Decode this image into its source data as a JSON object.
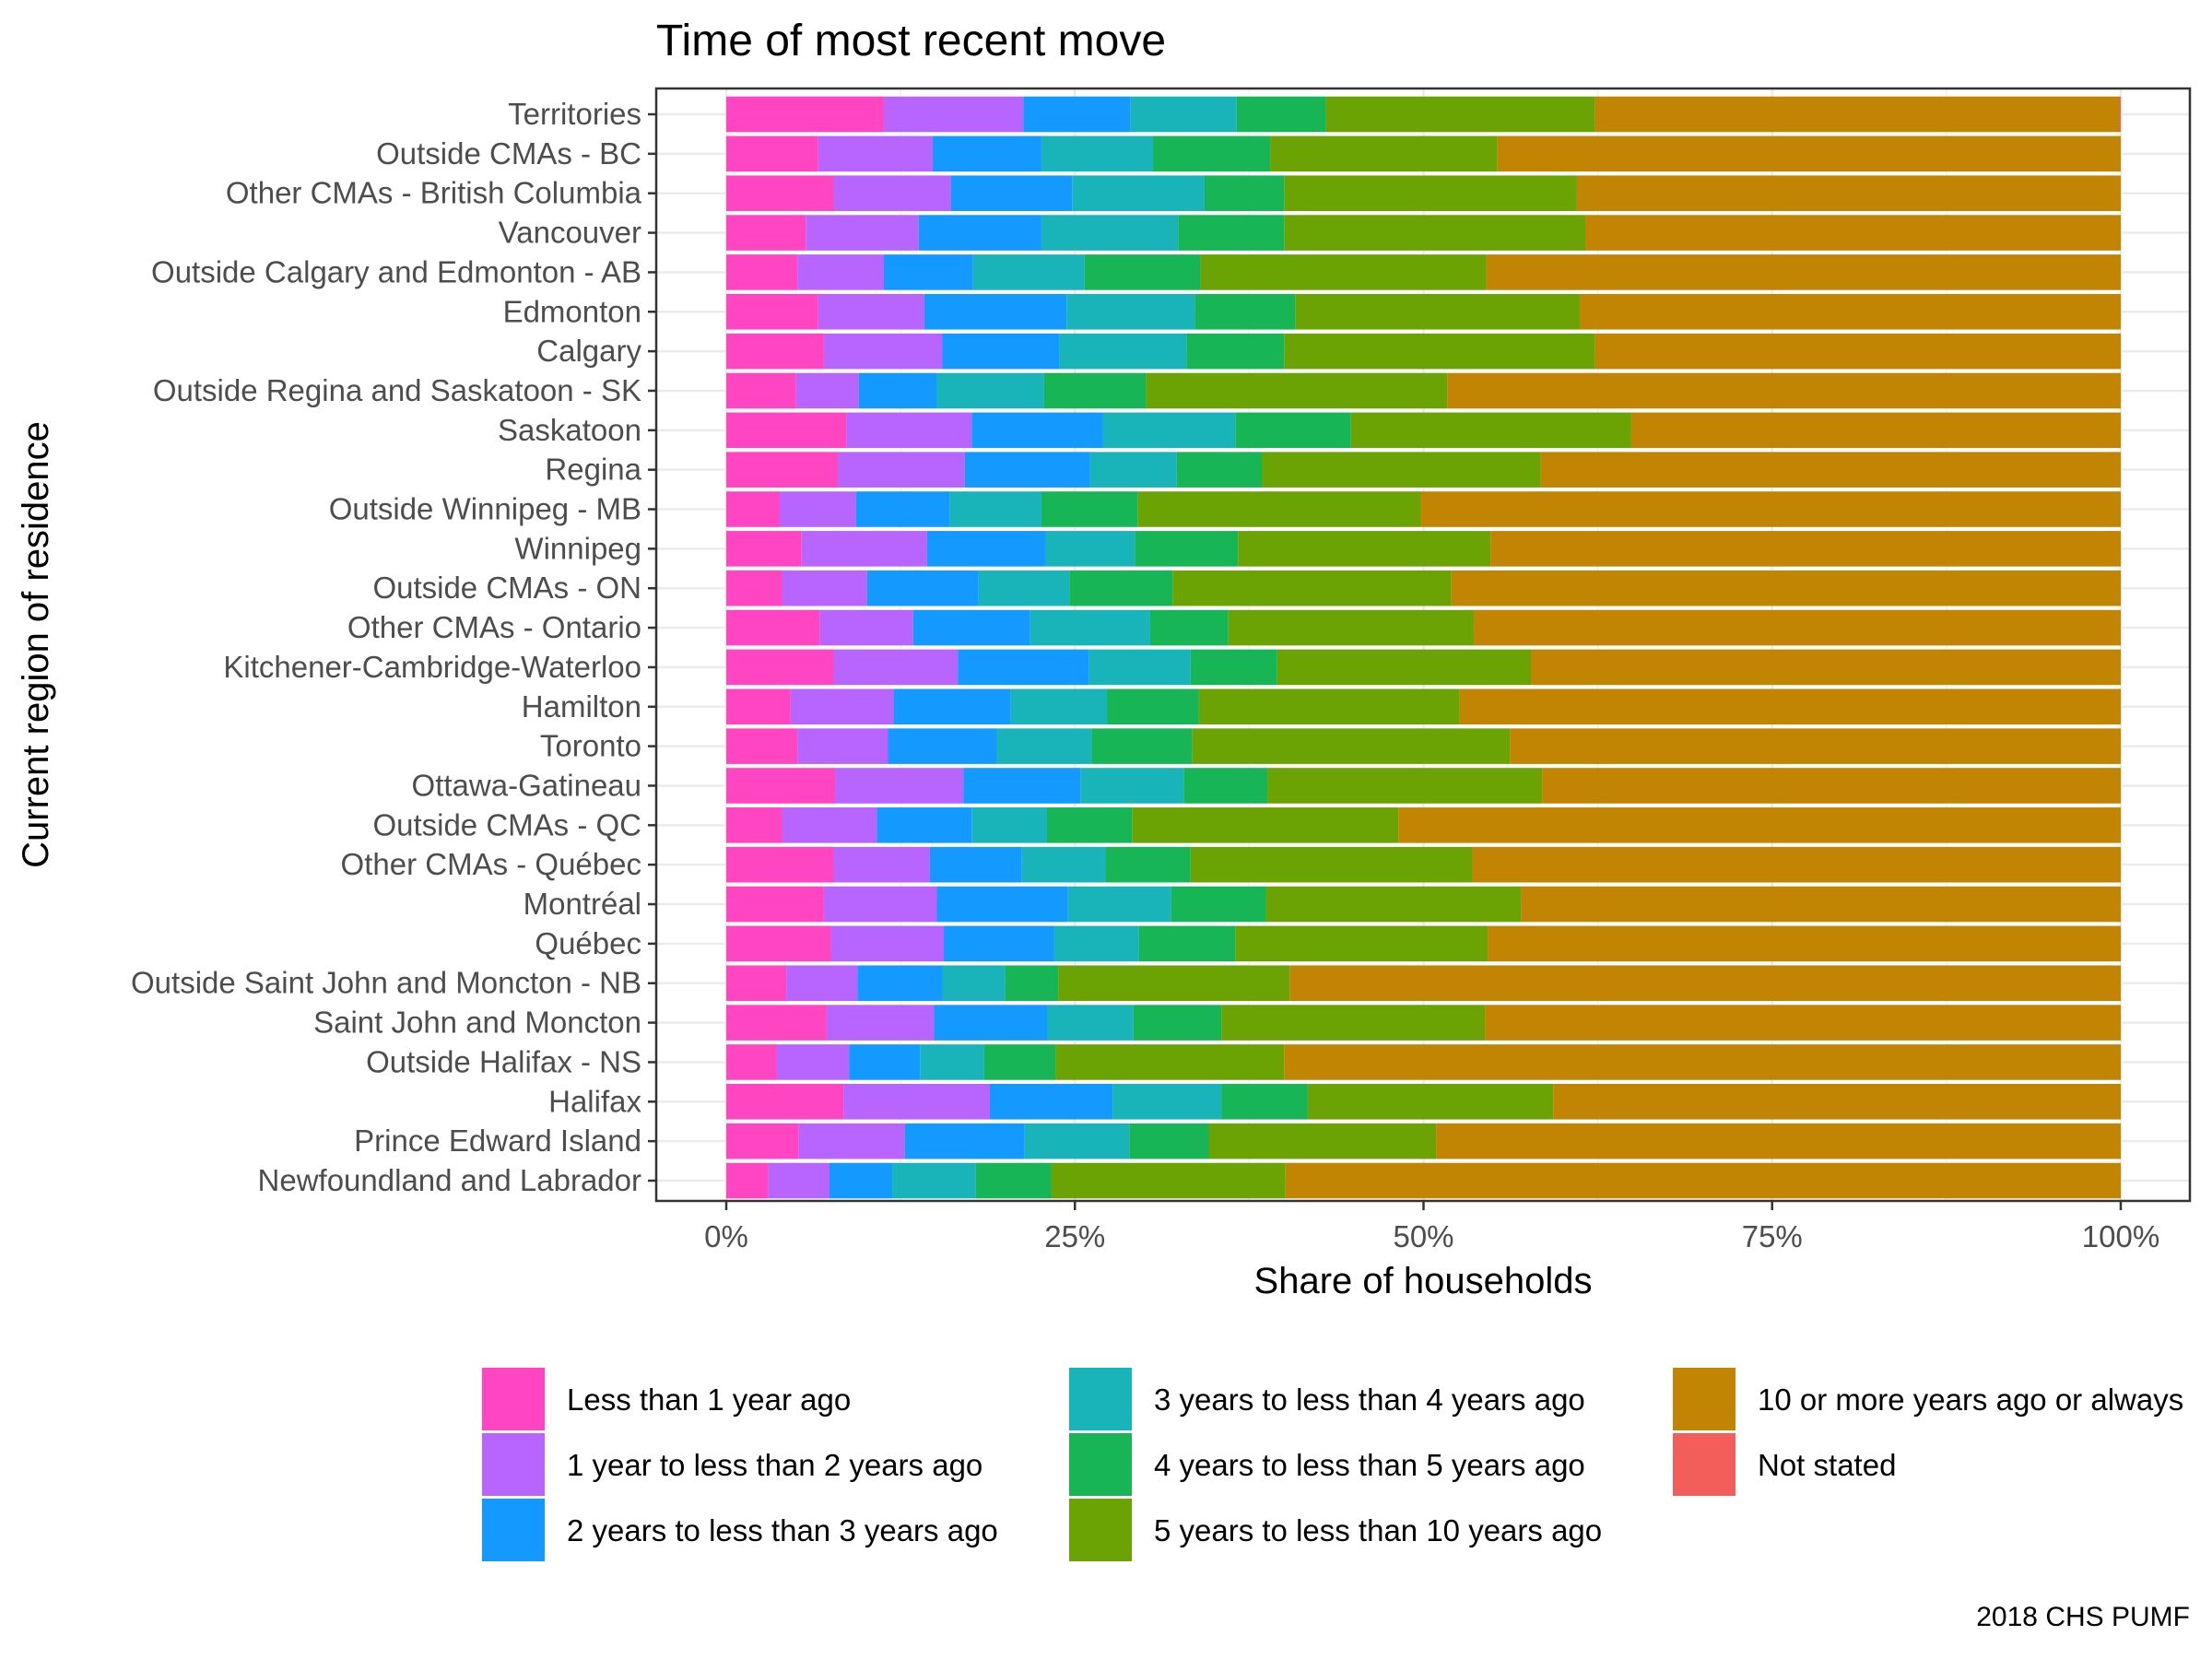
{
  "chart_data": {
    "type": "bar",
    "orientation": "horizontal",
    "stacked": true,
    "title": "Time of most recent move",
    "xlabel": "Share of households",
    "ylabel": "Current region of residence",
    "xlim": [
      0,
      100
    ],
    "x_ticks": [
      "0%",
      "25%",
      "50%",
      "75%",
      "100%"
    ],
    "x_tick_values": [
      0,
      25,
      50,
      75,
      100
    ],
    "grid": true,
    "legend_position": "bottom",
    "caption": "2018 CHS PUMF",
    "categories": [
      "Territories",
      "Outside CMAs - BC",
      "Other CMAs - British Columbia",
      "Vancouver",
      "Outside Calgary and Edmonton - AB",
      "Edmonton",
      "Calgary",
      "Outside Regina and Saskatoon - SK",
      "Saskatoon",
      "Regina",
      "Outside Winnipeg - MB",
      "Winnipeg",
      "Outside CMAs - ON",
      "Other CMAs - Ontario",
      "Kitchener-Cambridge-Waterloo",
      "Hamilton",
      "Toronto",
      "Ottawa-Gatineau",
      "Outside CMAs - QC",
      "Other CMAs - Québec",
      "Montréal",
      "Québec",
      "Outside Saint John and Moncton - NB",
      "Saint John and Moncton",
      "Outside Halifax - NS",
      "Halifax",
      "Prince Edward Island",
      "Newfoundland and Labrador"
    ],
    "series": [
      {
        "name": "Less than 1 year ago",
        "color": "#FF45C2",
        "values": [
          11.3,
          6.6,
          7.7,
          5.7,
          5.1,
          6.6,
          7.0,
          5.0,
          8.6,
          8.0,
          3.8,
          5.4,
          4.0,
          6.7,
          7.7,
          4.6,
          5.1,
          7.8,
          4.0,
          7.7,
          7.0,
          7.5,
          4.3,
          7.2,
          3.6,
          8.4,
          5.2,
          3.0
        ]
      },
      {
        "name": "1 year to less than 2 years ago",
        "color": "#B864FF",
        "values": [
          10.0,
          8.2,
          8.4,
          8.1,
          6.2,
          7.6,
          8.5,
          4.5,
          9.0,
          9.1,
          5.5,
          9.0,
          6.1,
          6.7,
          8.9,
          7.4,
          6.5,
          9.2,
          6.8,
          6.9,
          8.1,
          8.1,
          5.1,
          7.7,
          5.2,
          10.5,
          7.6,
          4.4
        ]
      },
      {
        "name": "2 years to less than 3 years ago",
        "color": "#1399FF",
        "values": [
          7.7,
          7.8,
          8.7,
          8.8,
          6.4,
          10.2,
          8.4,
          5.6,
          9.4,
          9.0,
          6.7,
          8.5,
          8.0,
          8.4,
          9.4,
          8.4,
          7.8,
          8.4,
          6.8,
          6.6,
          9.4,
          7.9,
          6.1,
          8.1,
          5.1,
          8.8,
          8.6,
          4.5
        ]
      },
      {
        "name": "3 years to less than 4 years ago",
        "color": "#19B4B9",
        "values": [
          7.6,
          8.0,
          9.5,
          9.8,
          8.0,
          9.2,
          9.1,
          7.7,
          9.5,
          6.2,
          6.6,
          6.4,
          6.5,
          8.6,
          7.3,
          6.9,
          6.8,
          7.4,
          5.4,
          6.0,
          7.4,
          6.1,
          4.5,
          6.2,
          4.6,
          7.8,
          7.5,
          6.0
        ]
      },
      {
        "name": "4 years to less than 5 years ago",
        "color": "#17B555",
        "values": [
          6.4,
          8.4,
          5.7,
          7.6,
          8.3,
          7.2,
          7.0,
          7.3,
          8.3,
          6.1,
          6.9,
          7.4,
          7.4,
          5.6,
          6.2,
          6.6,
          7.2,
          6.0,
          6.1,
          6.1,
          6.8,
          6.9,
          3.8,
          6.3,
          5.1,
          6.2,
          5.7,
          5.4
        ]
      },
      {
        "name": "5 years to less than 10 years ago",
        "color": "#6BA304",
        "values": [
          19.3,
          16.3,
          21.0,
          21.6,
          20.5,
          20.4,
          22.3,
          21.6,
          20.1,
          20.0,
          20.3,
          18.1,
          20.0,
          17.6,
          18.2,
          18.7,
          22.8,
          19.7,
          19.1,
          20.2,
          18.3,
          18.1,
          16.6,
          18.9,
          16.4,
          17.6,
          16.3,
          16.8
        ]
      },
      {
        "name": "10 or more years ago or always",
        "color": "#C18503",
        "values": [
          37.6,
          44.7,
          39.0,
          38.4,
          45.5,
          38.8,
          37.7,
          48.3,
          35.1,
          41.6,
          50.2,
          45.2,
          48.0,
          46.4,
          42.3,
          47.4,
          43.8,
          41.5,
          51.8,
          46.5,
          43.0,
          45.4,
          59.6,
          45.6,
          60.0,
          40.7,
          49.1,
          59.9
        ]
      },
      {
        "name": "Not stated",
        "color": "#F35E5A",
        "values": [
          0.1,
          0,
          0,
          0,
          0,
          0,
          0,
          0,
          0,
          0,
          0,
          0,
          0,
          0,
          0,
          0,
          0,
          0,
          0,
          0,
          0,
          0,
          0,
          0,
          0,
          0,
          0,
          0
        ]
      }
    ]
  }
}
